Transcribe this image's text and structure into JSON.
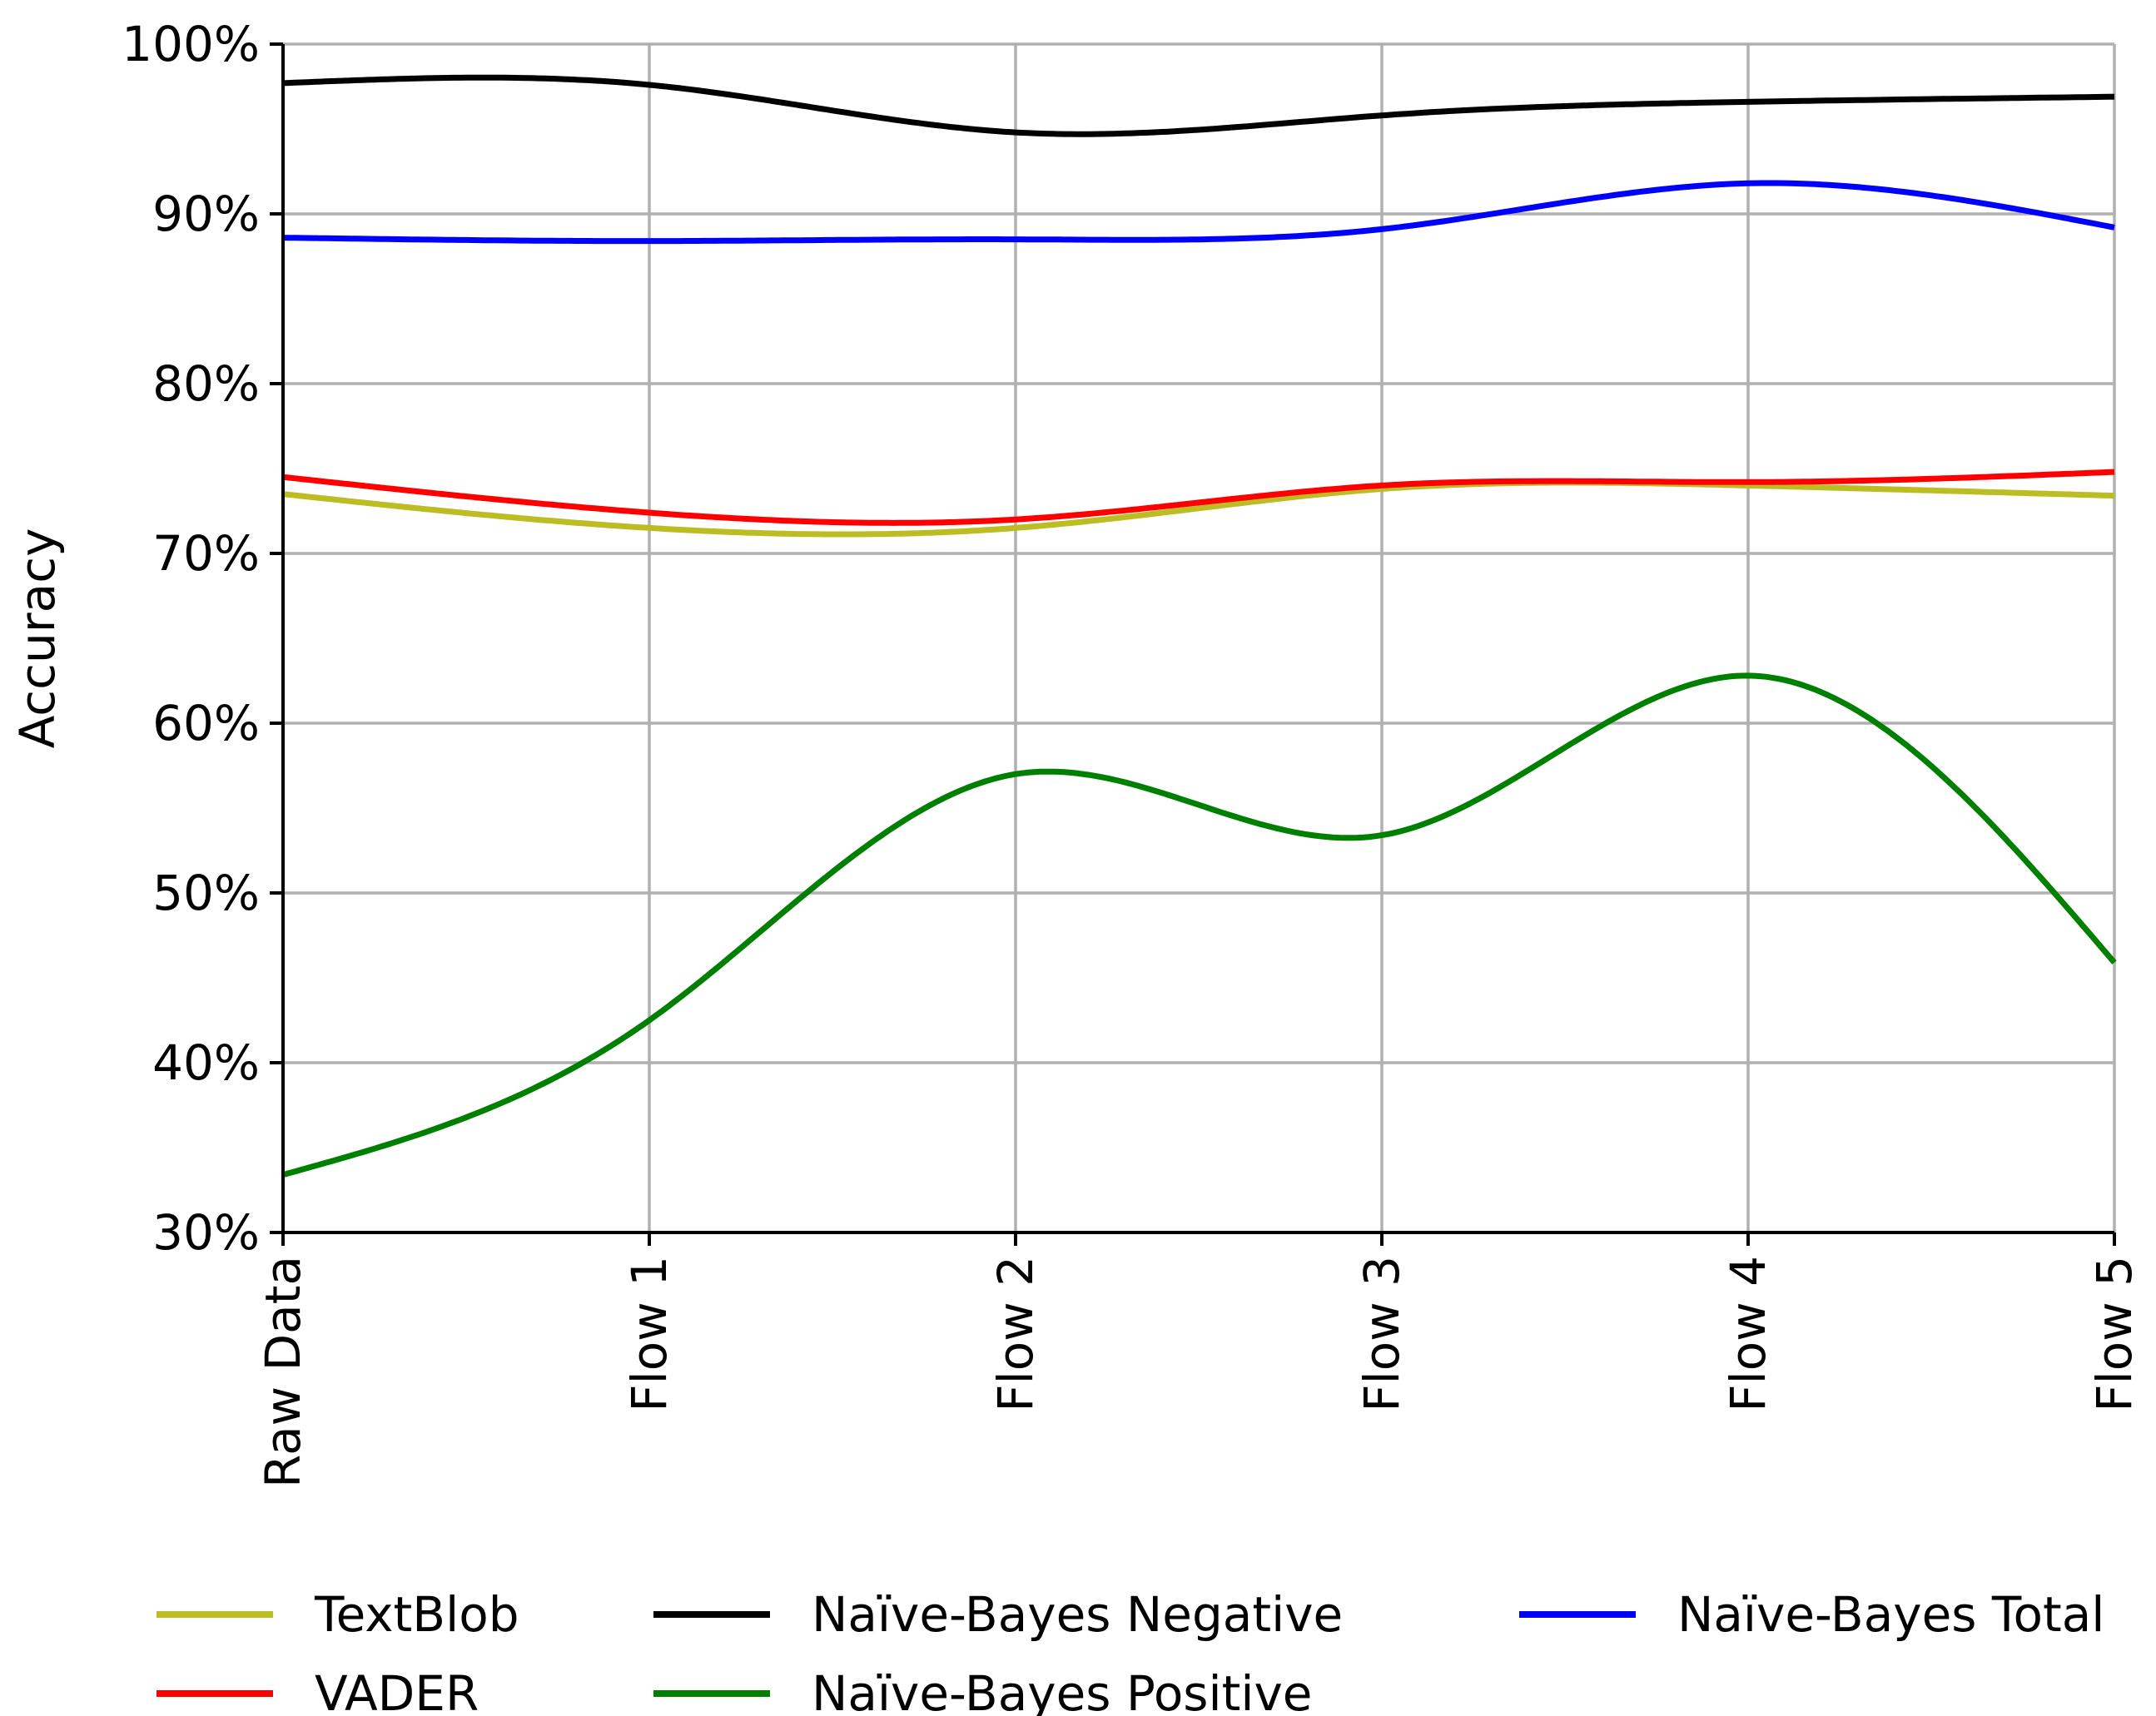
{
  "chart_data": {
    "type": "line",
    "title": "",
    "xlabel": "",
    "ylabel": "Accuracy",
    "categories": [
      "Raw Data",
      "Flow 1",
      "Flow 2",
      "Flow 3",
      "Flow 4",
      "Flow 5"
    ],
    "ylim": [
      30,
      100
    ],
    "yticks": [
      30,
      40,
      50,
      60,
      70,
      80,
      90,
      100
    ],
    "ytick_labels": [
      "30%",
      "40%",
      "50%",
      "60%",
      "70%",
      "80%",
      "90%",
      "100%"
    ],
    "grid": true,
    "smooth": true,
    "legend_position": "bottom",
    "series": [
      {
        "name": "TextBlob",
        "color": "#bcbd22",
        "values": [
          73.5,
          71.5,
          71.5,
          73.8,
          74.0,
          73.4
        ]
      },
      {
        "name": "VADER",
        "color": "#ff0000",
        "values": [
          74.5,
          72.4,
          72.0,
          74.0,
          74.2,
          74.8
        ]
      },
      {
        "name": "Naïve-Bayes Negative",
        "color": "#000000",
        "values": [
          97.7,
          97.6,
          94.8,
          95.8,
          96.6,
          96.9
        ]
      },
      {
        "name": "Naïve-Bayes Positive",
        "color": "#008000",
        "values": [
          33.4,
          42.5,
          57.0,
          53.4,
          62.8,
          45.9
        ]
      },
      {
        "name": "Naïve-Bayes Total",
        "color": "#0000ff",
        "values": [
          88.6,
          88.4,
          88.5,
          89.1,
          91.8,
          89.2
        ]
      }
    ]
  }
}
